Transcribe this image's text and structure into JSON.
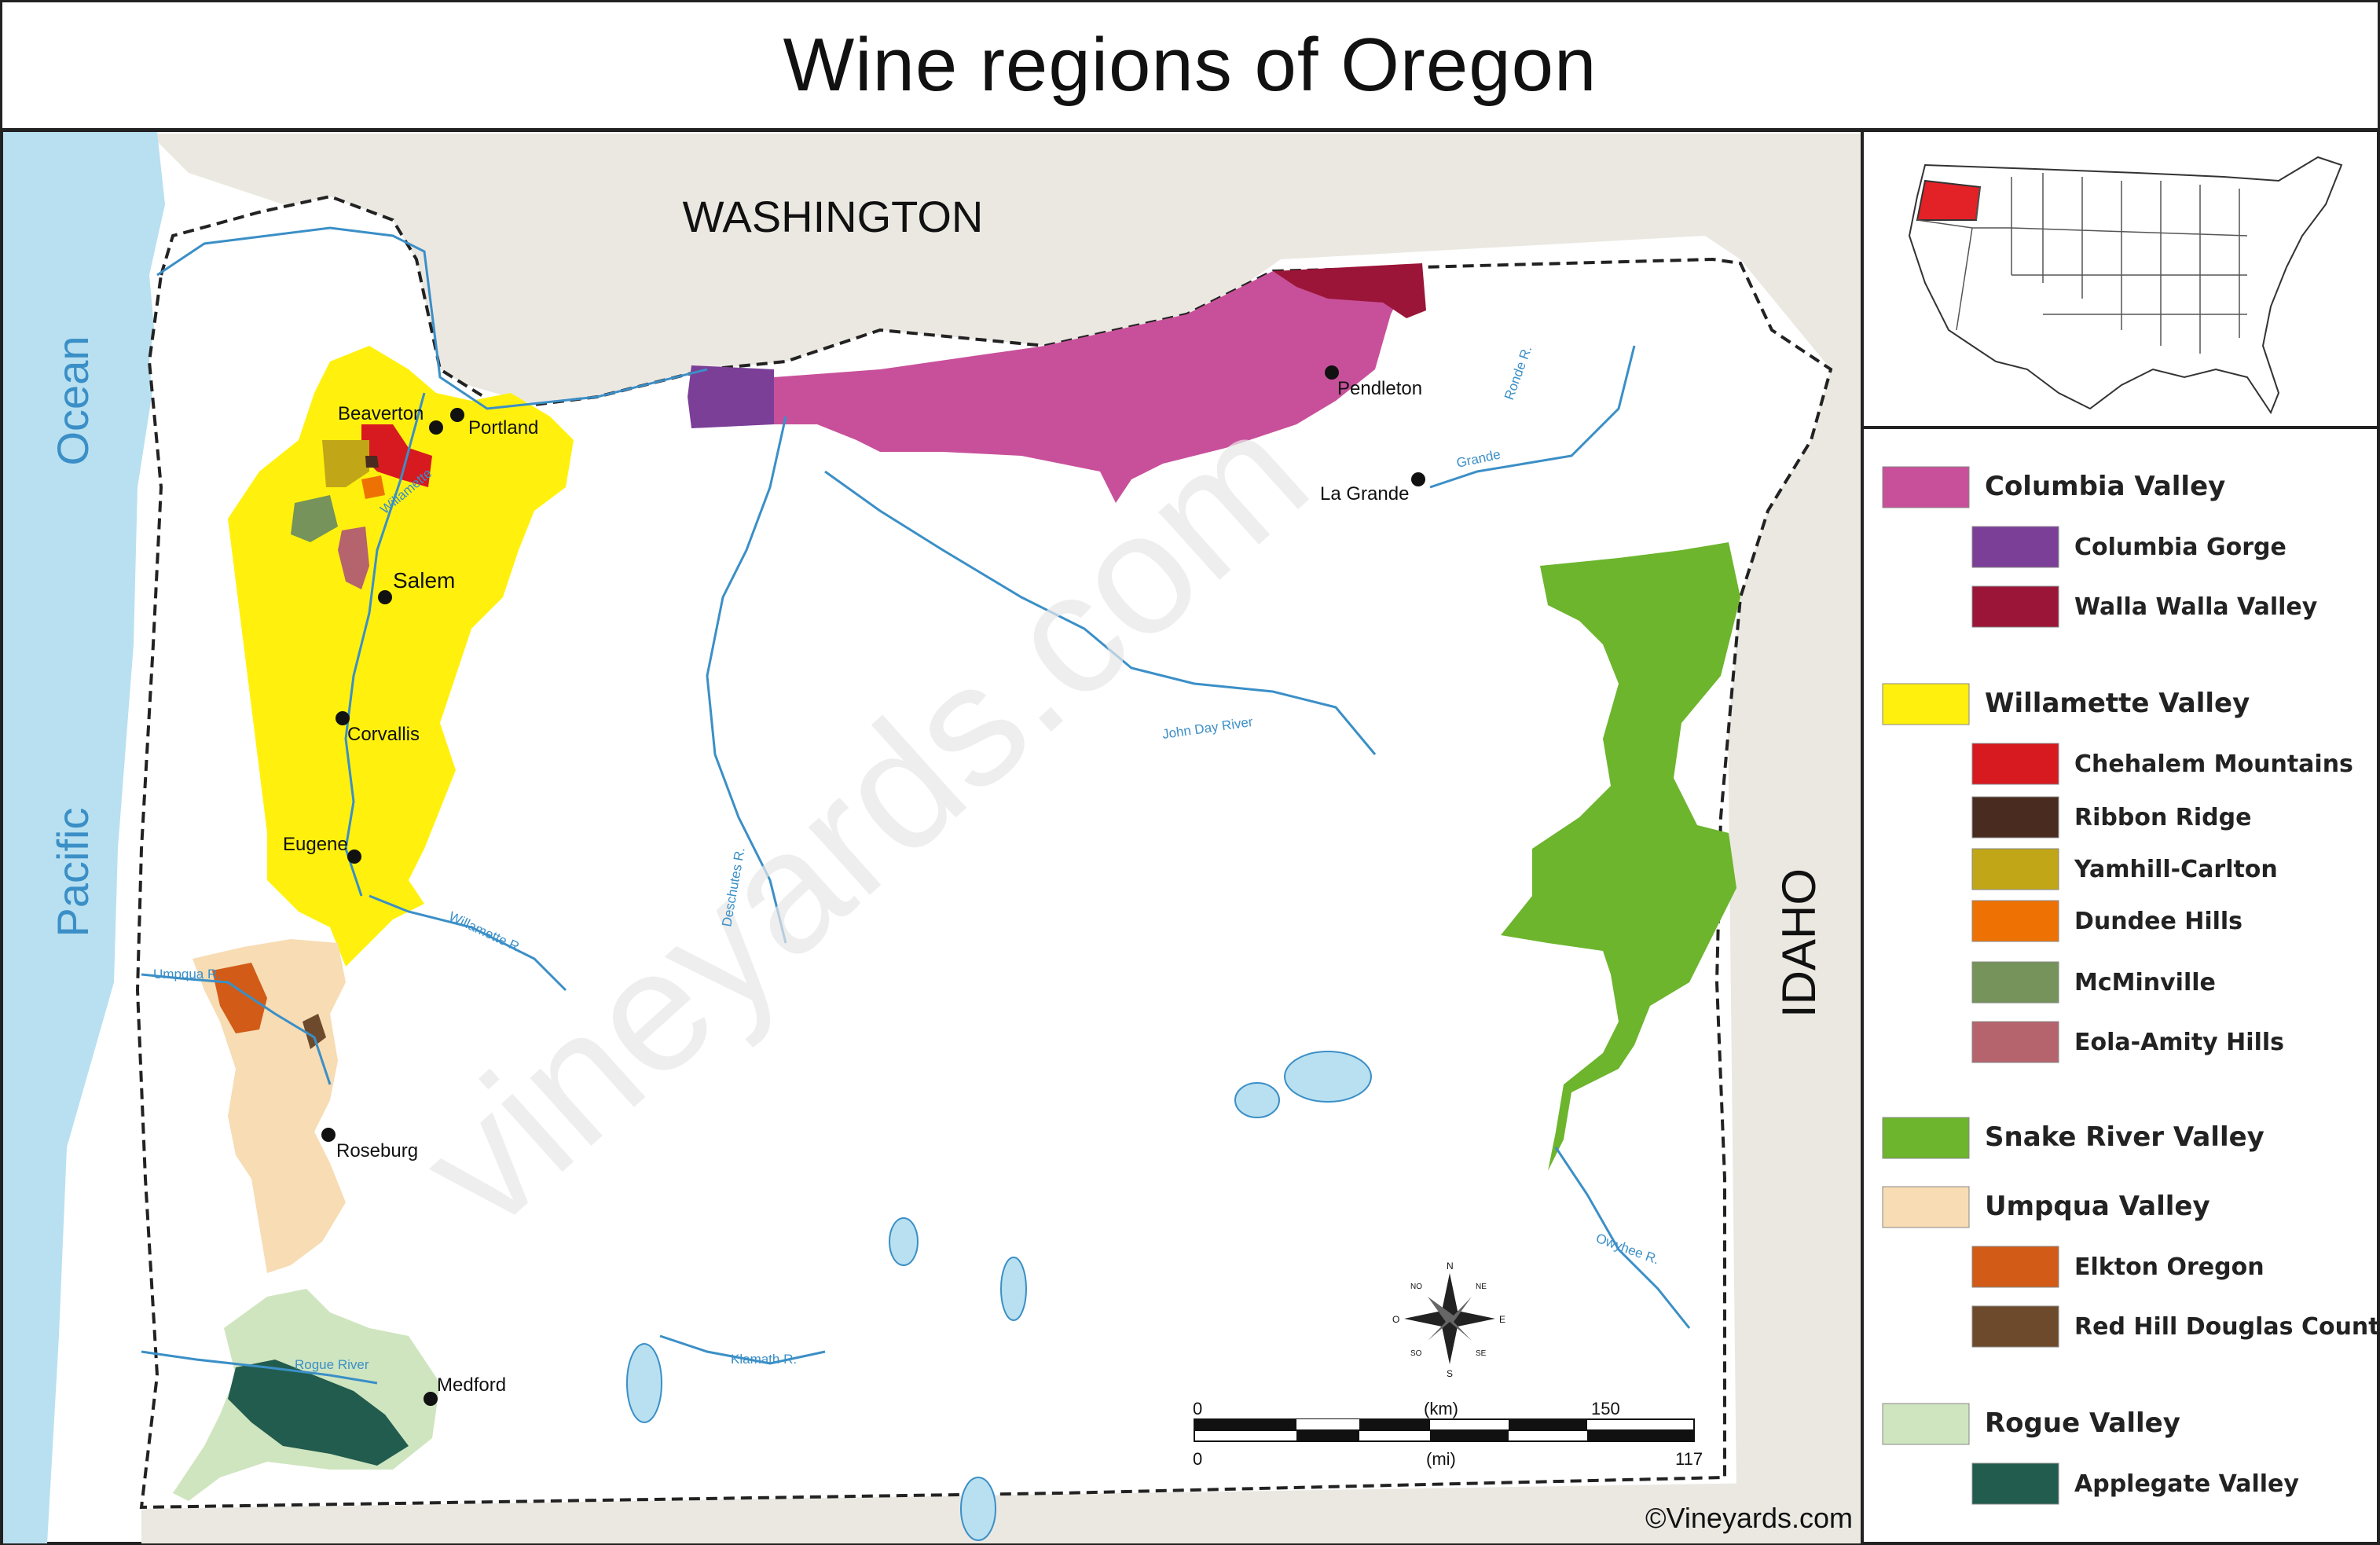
{
  "title": "Wine regions of Oregon",
  "map": {
    "water_labels": [
      "Pacific",
      "Ocean"
    ],
    "state_labels": [
      "WASHINGTON",
      "IDAHO"
    ],
    "cities": [
      "Portland",
      "Beaverton",
      "Salem",
      "Corvallis",
      "Eugene",
      "Roseburg",
      "Medford",
      "Pendleton",
      "La Grande"
    ],
    "rivers": [
      "Willamette",
      "Willamette R.",
      "Umpqua R.",
      "Rogue River",
      "Klamath R.",
      "John Day River",
      "Deschutes R.",
      "Grande",
      "Ronde R.",
      "Owyhee R."
    ],
    "compass": {
      "n": "N",
      "s": "S",
      "e": "E",
      "w": "O",
      "ne": "NE",
      "nw": "NO",
      "se": "SE",
      "sw": "SO"
    },
    "scale": {
      "km_label": "(km)",
      "mi_label": "(mi)",
      "km_zero": "0",
      "km_max": "150",
      "mi_zero": "0",
      "mi_max": "117"
    },
    "watermark": "vineyards.com",
    "copyright": "©Vineyards.com",
    "colors": {
      "ocean": "#b8e0f0",
      "neighbor": "#ebe8e2",
      "river": "#3b8fc7"
    }
  },
  "legend": [
    {
      "label": "Columbia Valley",
      "color": "#c8509a",
      "level": 0
    },
    {
      "label": "Columbia Gorge",
      "color": "#7b3f98",
      "level": 1
    },
    {
      "label": "Walla Walla Valley",
      "color": "#9b1538",
      "level": 1
    },
    {
      "label": "Willamette Valley",
      "color": "#fff10d",
      "level": 0
    },
    {
      "label": "Chehalem Mountains",
      "color": "#d71920",
      "level": 1
    },
    {
      "label": "Ribbon Ridge",
      "color": "#4a2b20",
      "level": 1
    },
    {
      "label": "Yamhill-Carlton",
      "color": "#c1a617",
      "level": 1
    },
    {
      "label": "Dundee Hills",
      "color": "#ee7203",
      "level": 1
    },
    {
      "label": "McMinville",
      "color": "#75935a",
      "level": 1
    },
    {
      "label": "Eola-Amity Hills",
      "color": "#b5636c",
      "level": 1
    },
    {
      "label": "Snake River Valley",
      "color": "#6cb52d",
      "level": 0
    },
    {
      "label": "Umpqua Valley",
      "color": "#f7dcb4",
      "level": 0
    },
    {
      "label": "Elkton Oregon",
      "color": "#d15b17",
      "level": 1
    },
    {
      "label": "Red Hill Douglas County",
      "color": "#6e4a2c",
      "level": 1
    },
    {
      "label": "Rogue Valley",
      "color": "#cfe5bf",
      "level": 0
    },
    {
      "label": "Applegate Valley",
      "color": "#215c4e",
      "level": 1
    }
  ]
}
